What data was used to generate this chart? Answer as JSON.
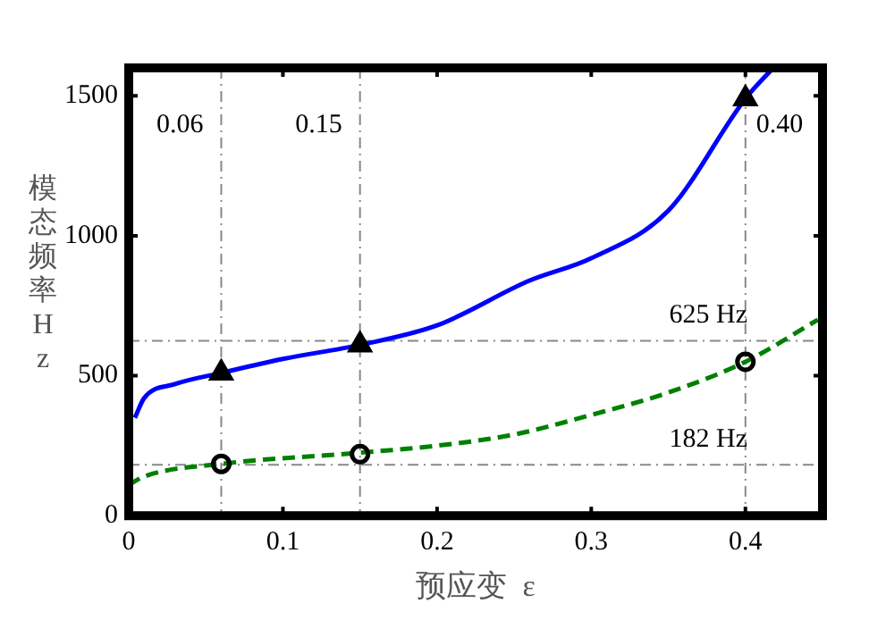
{
  "chart_data": {
    "type": "line",
    "xlabel": "预应变  ε",
    "ylabel": "模态频率 Hz",
    "xlim": [
      0,
      0.45
    ],
    "ylim": [
      0,
      1600
    ],
    "xticks": [
      0,
      0.1,
      0.2,
      0.3,
      0.4
    ],
    "yticks": [
      0,
      500,
      1000,
      1500
    ],
    "grid": false,
    "legend": false,
    "series": [
      {
        "type": "line",
        "color": "#0000ff",
        "line_style": "solid",
        "marker": "none",
        "x": [
          0.004,
          0.01,
          0.03,
          0.06,
          0.1,
          0.15,
          0.2,
          0.26,
          0.3,
          0.35,
          0.4,
          0.418
        ],
        "values": [
          350,
          420,
          470,
          510,
          560,
          610,
          680,
          840,
          920,
          1090,
          1490,
          1600
        ]
      },
      {
        "type": "line",
        "color": "#008000",
        "line_style": "dashed",
        "marker": "none",
        "x": [
          0,
          0.01,
          0.06,
          0.15,
          0.2,
          0.25,
          0.3,
          0.35,
          0.4,
          0.447
        ],
        "values": [
          110,
          140,
          185,
          225,
          250,
          290,
          360,
          440,
          550,
          700
        ]
      },
      {
        "type": "scatter",
        "color": "#000000",
        "marker": "triangle",
        "x": [
          0.06,
          0.15,
          0.4
        ],
        "values": [
          510,
          610,
          1490
        ]
      },
      {
        "type": "scatter",
        "color": "#000000",
        "marker": "circle",
        "x": [
          0.06,
          0.15,
          0.4
        ],
        "values": [
          185,
          220,
          550
        ]
      }
    ],
    "ref_lines": [
      {
        "axis": "x",
        "value": 0.06,
        "label": "0.06",
        "line_style": "dashed"
      },
      {
        "axis": "x",
        "value": 0.15,
        "label": "0.15",
        "line_style": "dashed"
      },
      {
        "axis": "x",
        "value": 0.4,
        "label": "0.40",
        "line_style": "dashed"
      },
      {
        "axis": "y",
        "value": 625,
        "label": "625 Hz",
        "line_style": "dashed"
      },
      {
        "axis": "y",
        "value": 182,
        "label": "182 Hz",
        "line_style": "dashed"
      }
    ]
  }
}
